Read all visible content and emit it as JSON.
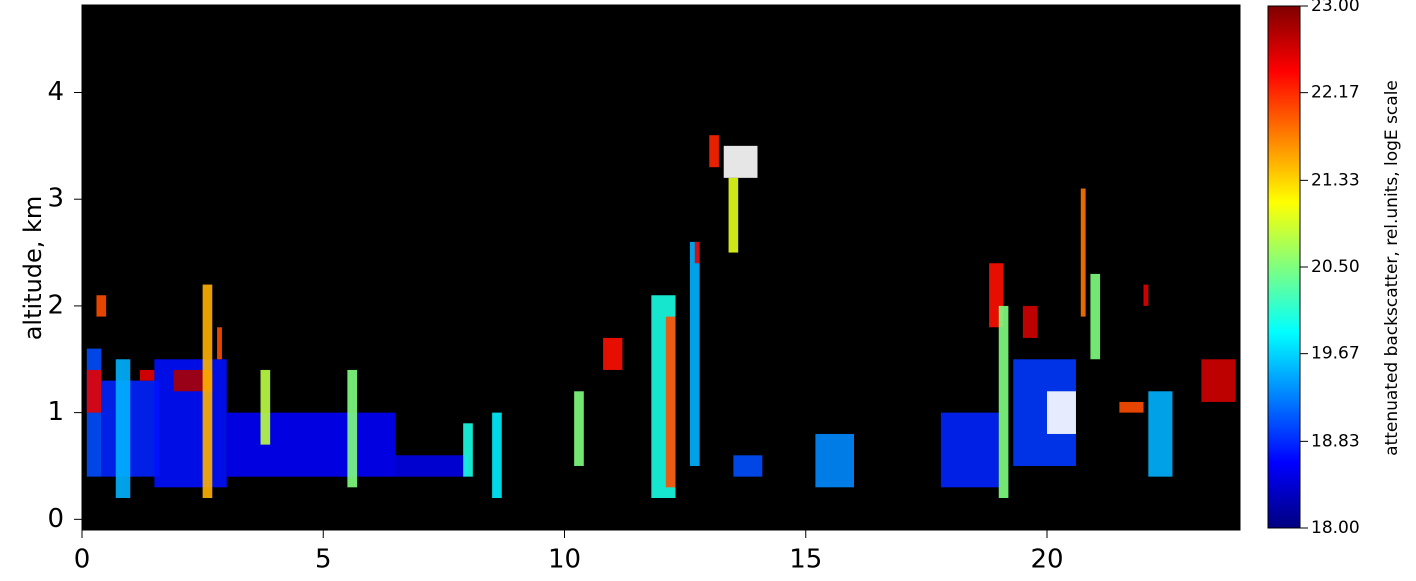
{
  "chart_data": {
    "type": "heatmap",
    "ylabel": "altitude, km",
    "colorbar_label": "attenuated backscatter, rel.units, logE scale",
    "xlim": [
      0,
      24
    ],
    "ylim": [
      -0.1,
      4.82
    ],
    "xticks": [
      0,
      5,
      10,
      15,
      20
    ],
    "yticks": [
      0,
      1,
      2,
      3,
      4
    ],
    "clim": [
      18,
      23
    ],
    "cticks": [
      {
        "value": 18,
        "label": "18.00"
      },
      {
        "value": 18.83,
        "label": "18.83"
      },
      {
        "value": 19.67,
        "label": "19.67"
      },
      {
        "value": 20.5,
        "label": "20.50"
      },
      {
        "value": 21.33,
        "label": "21.33"
      },
      {
        "value": 22.17,
        "label": "22.17"
      },
      {
        "value": 23,
        "label": "23.00"
      }
    ],
    "colormap": "jet",
    "background": "#000000",
    "cells": [
      {
        "x": [
          0.1,
          0.4
        ],
        "y": [
          0.4,
          1.6
        ],
        "value": 19
      },
      {
        "x": [
          0.1,
          0.4
        ],
        "y": [
          1.0,
          1.4
        ],
        "value": 22.5
      },
      {
        "x": [
          0.3,
          0.5
        ],
        "y": [
          1.9,
          2.1
        ],
        "value": 22
      },
      {
        "x": [
          0.4,
          1.6
        ],
        "y": [
          0.4,
          1.3
        ],
        "value": 18.8
      },
      {
        "x": [
          0.7,
          1.0
        ],
        "y": [
          0.2,
          1.5
        ],
        "value": 19.5
      },
      {
        "x": [
          1.2,
          1.5
        ],
        "y": [
          1.3,
          1.4
        ],
        "value": 22.5
      },
      {
        "x": [
          1.5,
          3.0
        ],
        "y": [
          0.3,
          1.5
        ],
        "value": 18.7
      },
      {
        "x": [
          1.9,
          2.7
        ],
        "y": [
          1.2,
          1.4
        ],
        "value": 22.8
      },
      {
        "x": [
          2.5,
          2.7
        ],
        "y": [
          0.2,
          2.2
        ],
        "value": 21.5
      },
      {
        "x": [
          2.8,
          2.9
        ],
        "y": [
          1.5,
          1.8
        ],
        "value": 22
      },
      {
        "x": [
          3.0,
          6.5
        ],
        "y": [
          0.4,
          1.0
        ],
        "value": 18.6
      },
      {
        "x": [
          3.7,
          3.9
        ],
        "y": [
          0.7,
          1.4
        ],
        "value": 20.8
      },
      {
        "x": [
          5.5,
          5.7
        ],
        "y": [
          0.3,
          1.4
        ],
        "value": 20.5
      },
      {
        "x": [
          6.5,
          8.0
        ],
        "y": [
          0.4,
          0.6
        ],
        "value": 18.5
      },
      {
        "x": [
          7.9,
          8.1
        ],
        "y": [
          0.4,
          0.9
        ],
        "value": 20
      },
      {
        "x": [
          8.5,
          8.7
        ],
        "y": [
          0.2,
          1.0
        ],
        "value": 19.8
      },
      {
        "x": [
          10.2,
          10.4
        ],
        "y": [
          0.5,
          1.2
        ],
        "value": 20.5
      },
      {
        "x": [
          10.8,
          11.2
        ],
        "y": [
          1.4,
          1.7
        ],
        "value": 22.3
      },
      {
        "x": [
          11.8,
          12.3
        ],
        "y": [
          0.2,
          2.1
        ],
        "value": 20
      },
      {
        "x": [
          12.1,
          12.3
        ],
        "y": [
          0.3,
          1.9
        ],
        "value": 22
      },
      {
        "x": [
          12.6,
          12.8
        ],
        "y": [
          0.5,
          2.6
        ],
        "value": 19.5
      },
      {
        "x": [
          12.7,
          12.8
        ],
        "y": [
          2.4,
          2.6
        ],
        "value": 22.5
      },
      {
        "x": [
          13.0,
          13.2
        ],
        "y": [
          3.3,
          3.6
        ],
        "value": 22.2
      },
      {
        "x": [
          13.3,
          14.0
        ],
        "y": [
          3.2,
          3.5
        ],
        "value": 23
      },
      {
        "x": [
          13.4,
          13.6
        ],
        "y": [
          2.5,
          3.2
        ],
        "value": 21
      },
      {
        "x": [
          13.5,
          14.1
        ],
        "y": [
          0.4,
          0.6
        ],
        "value": 19
      },
      {
        "x": [
          15.2,
          16.0
        ],
        "y": [
          0.3,
          0.8
        ],
        "value": 19.3
      },
      {
        "x": [
          17.8,
          19.0
        ],
        "y": [
          0.3,
          1.0
        ],
        "value": 18.8
      },
      {
        "x": [
          18.8,
          19.1
        ],
        "y": [
          1.8,
          2.4
        ],
        "value": 22.3
      },
      {
        "x": [
          19.0,
          19.2
        ],
        "y": [
          0.2,
          2.0
        ],
        "value": 20.5
      },
      {
        "x": [
          19.3,
          20.6
        ],
        "y": [
          0.5,
          1.5
        ],
        "value": 18.9
      },
      {
        "x": [
          19.5,
          19.8
        ],
        "y": [
          1.7,
          2.0
        ],
        "value": 22.6
      },
      {
        "x": [
          20.0,
          20.6
        ],
        "y": [
          0.8,
          1.2
        ],
        "value": 23
      },
      {
        "x": [
          20.7,
          20.8
        ],
        "y": [
          1.9,
          3.1
        ],
        "value": 21.8
      },
      {
        "x": [
          20.9,
          21.1
        ],
        "y": [
          1.5,
          2.3
        ],
        "value": 20.5
      },
      {
        "x": [
          21.5,
          22.0
        ],
        "y": [
          1.0,
          1.1
        ],
        "value": 22
      },
      {
        "x": [
          22.0,
          22.1
        ],
        "y": [
          2.0,
          2.2
        ],
        "value": 22.5
      },
      {
        "x": [
          22.1,
          22.6
        ],
        "y": [
          0.4,
          1.2
        ],
        "value": 19.5
      },
      {
        "x": [
          23.2,
          23.9
        ],
        "y": [
          1.1,
          1.5
        ],
        "value": 22.6
      }
    ]
  }
}
